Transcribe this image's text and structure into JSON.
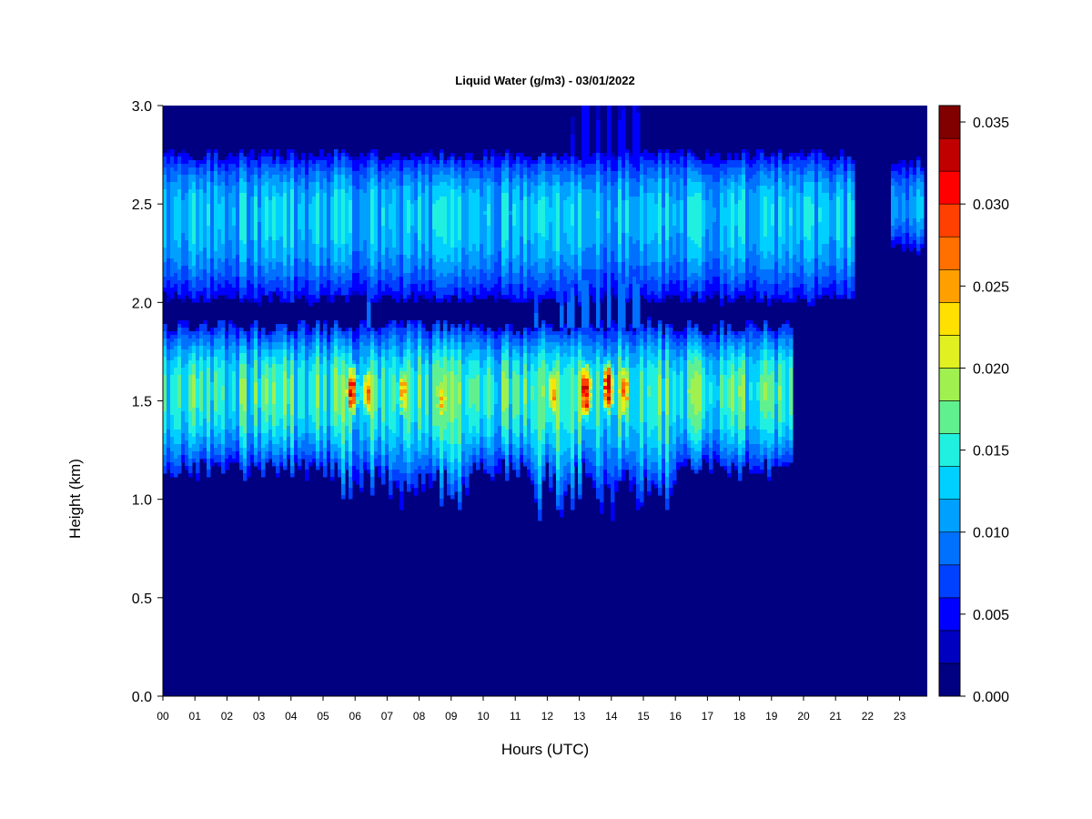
{
  "chart_data": {
    "type": "heatmap",
    "title": "Liquid Water (g/m3) - 03/01/2022",
    "xlabel": "Hours (UTC)",
    "ylabel": "Height (km)",
    "x_ticks": [
      "00",
      "01",
      "02",
      "03",
      "04",
      "05",
      "06",
      "07",
      "08",
      "09",
      "10",
      "11",
      "12",
      "13",
      "14",
      "15",
      "16",
      "17",
      "18",
      "19",
      "20",
      "21",
      "22",
      "23"
    ],
    "xlim": [
      0,
      23.8
    ],
    "y_ticks": [
      "0.0",
      "0.5",
      "1.0",
      "1.5",
      "2.0",
      "2.5",
      "3.0"
    ],
    "ylim": [
      0,
      3.0
    ],
    "colorbar": {
      "min": 0.0,
      "max": 0.036,
      "step": 0.002,
      "tick_labels": [
        "0.000",
        "0.005",
        "0.010",
        "0.015",
        "0.020",
        "0.025",
        "0.030",
        "0.035"
      ],
      "colors": [
        "#000080",
        "#0000c0",
        "#0000ff",
        "#0040ff",
        "#0070ff",
        "#00a0ff",
        "#00d0ff",
        "#20f0e0",
        "#60f090",
        "#a0f050",
        "#e0f020",
        "#ffe000",
        "#ffa000",
        "#ff7000",
        "#ff4000",
        "#ff0000",
        "#c00000",
        "#800000"
      ]
    },
    "cloud_layers": [
      {
        "name": "",
        "base_km": 2.02,
        "top_km": 2.75,
        "core_km": 2.45,
        "start_h": 0.0,
        "end_h": 21.6,
        "peak_value": 0.013
      },
      {
        "name": "",
        "base_km": 2.27,
        "top_km": 2.72,
        "core_km": 2.48,
        "start_h": 22.7,
        "end_h": 23.8,
        "peak_value": 0.011
      },
      {
        "name": "",
        "base_km": 1.15,
        "top_km": 1.88,
        "core_km": 1.55,
        "start_h": 0.0,
        "end_h": 19.7,
        "peak_value": 0.016
      }
    ],
    "intense_cores": [
      {
        "hour": 5.9,
        "height_km": 1.55,
        "value": 0.031
      },
      {
        "hour": 6.4,
        "height_km": 1.55,
        "value": 0.026
      },
      {
        "hour": 7.5,
        "height_km": 1.55,
        "value": 0.025
      },
      {
        "hour": 8.7,
        "height_km": 1.5,
        "value": 0.023
      },
      {
        "hour": 12.2,
        "height_km": 1.55,
        "value": 0.026
      },
      {
        "hour": 13.2,
        "height_km": 1.55,
        "value": 0.034
      },
      {
        "hour": 13.9,
        "height_km": 1.57,
        "value": 0.033
      },
      {
        "hour": 14.4,
        "height_km": 1.55,
        "value": 0.027
      }
    ]
  }
}
